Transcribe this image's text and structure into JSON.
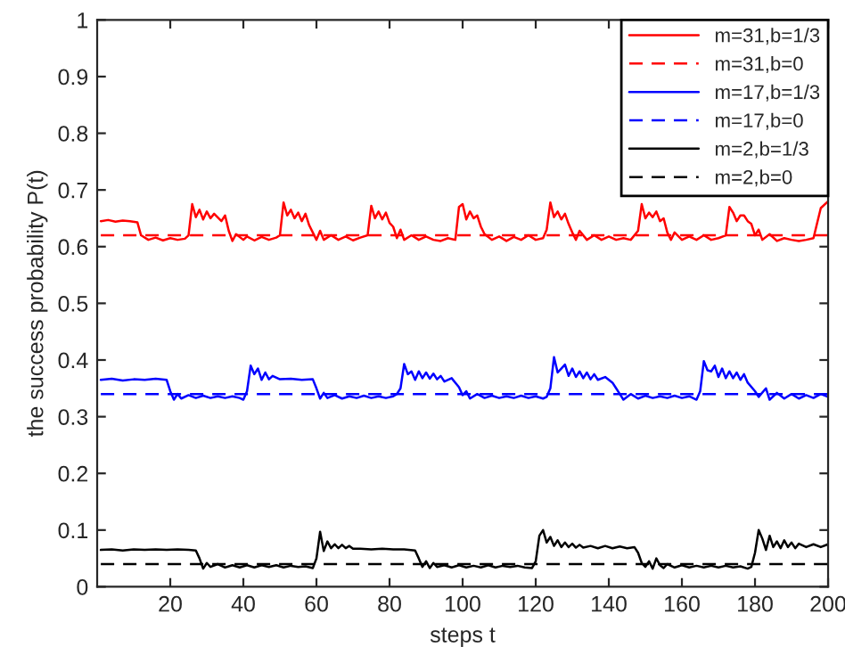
{
  "chart_data": {
    "type": "line",
    "xlabel": "steps t",
    "ylabel": "the success probability P(t)",
    "xlim": [
      0,
      200
    ],
    "xticks": [
      20,
      40,
      60,
      80,
      100,
      120,
      140,
      160,
      180,
      200
    ],
    "ylim": [
      0,
      1
    ],
    "yticks": [
      0,
      0.1,
      0.2,
      0.3,
      0.4,
      0.5,
      0.6,
      0.7,
      0.8,
      0.9,
      1
    ],
    "grid": false,
    "legend": "top right",
    "marker": "none",
    "series": [
      {
        "name": "m=31,b=1/3",
        "color": "#ff0000",
        "line_style": "solid",
        "x": [
          1,
          3,
          5,
          7,
          9,
          11,
          12,
          14,
          16,
          18,
          20,
          22,
          24,
          25,
          26,
          27,
          28,
          29,
          30,
          31,
          32,
          34,
          35,
          36,
          37,
          38,
          40,
          41,
          43,
          45,
          47,
          49,
          50,
          51,
          52,
          53,
          54,
          55,
          56,
          57,
          58,
          59,
          60,
          61,
          62,
          64,
          66,
          68,
          70,
          72,
          74,
          75,
          76,
          77,
          78,
          79,
          80,
          81,
          82,
          83,
          84,
          86,
          88,
          90,
          92,
          94,
          96,
          98,
          99,
          100,
          101,
          102,
          103,
          104,
          105,
          106,
          108,
          110,
          112,
          114,
          116,
          118,
          120,
          122,
          123,
          124,
          125,
          126,
          127,
          128,
          129,
          130,
          131,
          132,
          134,
          136,
          138,
          140,
          142,
          144,
          146,
          148,
          149,
          150,
          151,
          152,
          153,
          154,
          155,
          156,
          157,
          158,
          160,
          162,
          164,
          166,
          168,
          170,
          172,
          173,
          174,
          175,
          176,
          177,
          178,
          179,
          180,
          181,
          182,
          184,
          186,
          188,
          190,
          192,
          194,
          196,
          198,
          200
        ],
        "values": [
          0.645,
          0.647,
          0.644,
          0.646,
          0.645,
          0.643,
          0.62,
          0.612,
          0.616,
          0.611,
          0.615,
          0.612,
          0.614,
          0.62,
          0.675,
          0.652,
          0.665,
          0.648,
          0.662,
          0.65,
          0.658,
          0.645,
          0.655,
          0.628,
          0.61,
          0.622,
          0.612,
          0.618,
          0.611,
          0.617,
          0.612,
          0.616,
          0.62,
          0.678,
          0.655,
          0.665,
          0.65,
          0.66,
          0.645,
          0.658,
          0.638,
          0.625,
          0.612,
          0.628,
          0.612,
          0.62,
          0.612,
          0.618,
          0.611,
          0.616,
          0.62,
          0.672,
          0.65,
          0.662,
          0.648,
          0.66,
          0.642,
          0.635,
          0.615,
          0.63,
          0.612,
          0.62,
          0.612,
          0.618,
          0.612,
          0.61,
          0.615,
          0.612,
          0.67,
          0.675,
          0.648,
          0.662,
          0.65,
          0.655,
          0.635,
          0.622,
          0.612,
          0.618,
          0.61,
          0.617,
          0.612,
          0.62,
          0.612,
          0.615,
          0.63,
          0.678,
          0.652,
          0.662,
          0.648,
          0.658,
          0.64,
          0.625,
          0.612,
          0.628,
          0.612,
          0.62,
          0.612,
          0.618,
          0.612,
          0.615,
          0.612,
          0.628,
          0.675,
          0.65,
          0.66,
          0.652,
          0.662,
          0.645,
          0.65,
          0.625,
          0.612,
          0.625,
          0.612,
          0.618,
          0.612,
          0.62,
          0.612,
          0.615,
          0.62,
          0.67,
          0.66,
          0.645,
          0.655,
          0.655,
          0.645,
          0.64,
          0.62,
          0.63,
          0.612,
          0.622,
          0.61,
          0.615,
          0.612,
          0.61,
          0.612,
          0.615,
          0.668,
          0.68
        ]
      },
      {
        "name": "m=31,b=0",
        "color": "#ff0000",
        "line_style": "dashed",
        "x": [
          1,
          200
        ],
        "values": [
          0.62,
          0.62
        ]
      },
      {
        "name": "m=17,b=1/3",
        "color": "#0000ff",
        "line_style": "solid",
        "x": [
          1,
          4,
          7,
          10,
          13,
          16,
          19,
          20,
          21,
          22,
          23,
          25,
          27,
          29,
          31,
          33,
          35,
          37,
          39,
          40,
          41,
          42,
          43,
          44,
          45,
          46,
          47,
          48,
          50,
          53,
          56,
          59,
          60,
          61,
          62,
          63,
          65,
          67,
          69,
          71,
          73,
          75,
          77,
          79,
          81,
          82,
          83,
          84,
          85,
          86,
          87,
          88,
          89,
          90,
          91,
          92,
          93,
          94,
          95,
          97,
          99,
          100,
          101,
          102,
          104,
          106,
          108,
          110,
          112,
          114,
          116,
          118,
          120,
          122,
          123,
          124,
          125,
          126,
          127,
          128,
          129,
          130,
          131,
          132,
          133,
          134,
          135,
          136,
          137,
          139,
          141,
          142,
          143,
          144,
          146,
          148,
          150,
          152,
          154,
          156,
          158,
          160,
          162,
          164,
          165,
          166,
          167,
          168,
          169,
          170,
          171,
          172,
          173,
          174,
          175,
          176,
          177,
          178,
          180,
          181,
          183,
          184,
          186,
          188,
          190,
          192,
          194,
          196,
          198,
          200
        ],
        "values": [
          0.365,
          0.367,
          0.364,
          0.366,
          0.365,
          0.367,
          0.365,
          0.345,
          0.33,
          0.34,
          0.332,
          0.338,
          0.333,
          0.337,
          0.333,
          0.336,
          0.333,
          0.336,
          0.333,
          0.33,
          0.345,
          0.39,
          0.375,
          0.385,
          0.365,
          0.378,
          0.366,
          0.372,
          0.366,
          0.367,
          0.365,
          0.366,
          0.35,
          0.332,
          0.342,
          0.333,
          0.338,
          0.332,
          0.336,
          0.333,
          0.337,
          0.333,
          0.336,
          0.333,
          0.336,
          0.34,
          0.35,
          0.393,
          0.375,
          0.38,
          0.365,
          0.38,
          0.368,
          0.378,
          0.367,
          0.376,
          0.366,
          0.372,
          0.362,
          0.368,
          0.352,
          0.338,
          0.345,
          0.332,
          0.34,
          0.333,
          0.337,
          0.333,
          0.336,
          0.333,
          0.337,
          0.333,
          0.336,
          0.332,
          0.335,
          0.35,
          0.405,
          0.378,
          0.385,
          0.392,
          0.372,
          0.385,
          0.37,
          0.38,
          0.368,
          0.378,
          0.366,
          0.375,
          0.365,
          0.37,
          0.36,
          0.35,
          0.34,
          0.33,
          0.34,
          0.332,
          0.337,
          0.333,
          0.336,
          0.333,
          0.337,
          0.333,
          0.336,
          0.33,
          0.345,
          0.398,
          0.382,
          0.38,
          0.39,
          0.37,
          0.385,
          0.368,
          0.38,
          0.368,
          0.378,
          0.365,
          0.375,
          0.36,
          0.345,
          0.335,
          0.35,
          0.33,
          0.342,
          0.332,
          0.34,
          0.332,
          0.338,
          0.333,
          0.34,
          0.335
        ]
      },
      {
        "name": "m=17,b=0",
        "color": "#0000ff",
        "line_style": "dashed",
        "x": [
          1,
          200
        ],
        "values": [
          0.34,
          0.34
        ]
      },
      {
        "name": "m=2,b=1/3",
        "color": "#000000",
        "line_style": "solid",
        "x": [
          1,
          4,
          7,
          10,
          13,
          16,
          19,
          22,
          25,
          27,
          28,
          29,
          30,
          31,
          33,
          35,
          37,
          39,
          41,
          43,
          45,
          47,
          49,
          51,
          53,
          55,
          57,
          59,
          60,
          61,
          62,
          63,
          64,
          65,
          66,
          67,
          68,
          69,
          70,
          72,
          75,
          78,
          81,
          84,
          87,
          88,
          89,
          90,
          91,
          92,
          93,
          95,
          97,
          99,
          101,
          103,
          105,
          107,
          109,
          111,
          113,
          115,
          117,
          119,
          120,
          121,
          122,
          123,
          124,
          125,
          126,
          127,
          128,
          129,
          130,
          131,
          132,
          133,
          135,
          137,
          139,
          141,
          143,
          145,
          147,
          148,
          149,
          150,
          151,
          152,
          153,
          154,
          155,
          156,
          158,
          160,
          162,
          164,
          166,
          168,
          170,
          172,
          174,
          176,
          178,
          179,
          180,
          181,
          182,
          183,
          184,
          185,
          186,
          187,
          188,
          189,
          190,
          191,
          192,
          194,
          196,
          198,
          200
        ],
        "values": [
          0.065,
          0.066,
          0.064,
          0.066,
          0.065,
          0.066,
          0.065,
          0.066,
          0.065,
          0.064,
          0.05,
          0.032,
          0.042,
          0.035,
          0.04,
          0.034,
          0.038,
          0.034,
          0.038,
          0.034,
          0.038,
          0.035,
          0.038,
          0.034,
          0.037,
          0.035,
          0.036,
          0.033,
          0.05,
          0.097,
          0.063,
          0.08,
          0.068,
          0.075,
          0.068,
          0.074,
          0.068,
          0.072,
          0.067,
          0.067,
          0.066,
          0.067,
          0.066,
          0.066,
          0.064,
          0.05,
          0.035,
          0.045,
          0.033,
          0.042,
          0.035,
          0.038,
          0.034,
          0.038,
          0.034,
          0.037,
          0.034,
          0.038,
          0.034,
          0.037,
          0.035,
          0.037,
          0.034,
          0.033,
          0.045,
          0.09,
          0.1,
          0.078,
          0.088,
          0.072,
          0.082,
          0.07,
          0.078,
          0.07,
          0.076,
          0.069,
          0.074,
          0.069,
          0.072,
          0.068,
          0.072,
          0.068,
          0.071,
          0.068,
          0.07,
          0.06,
          0.042,
          0.035,
          0.045,
          0.032,
          0.05,
          0.038,
          0.033,
          0.04,
          0.034,
          0.038,
          0.034,
          0.037,
          0.034,
          0.037,
          0.034,
          0.037,
          0.034,
          0.036,
          0.032,
          0.035,
          0.06,
          0.1,
          0.085,
          0.065,
          0.09,
          0.07,
          0.08,
          0.068,
          0.082,
          0.07,
          0.078,
          0.068,
          0.076,
          0.07,
          0.075,
          0.07,
          0.075
        ]
      },
      {
        "name": "m=2,b=0",
        "color": "#000000",
        "line_style": "dashed",
        "x": [
          1,
          200
        ],
        "values": [
          0.04,
          0.04
        ]
      }
    ]
  }
}
